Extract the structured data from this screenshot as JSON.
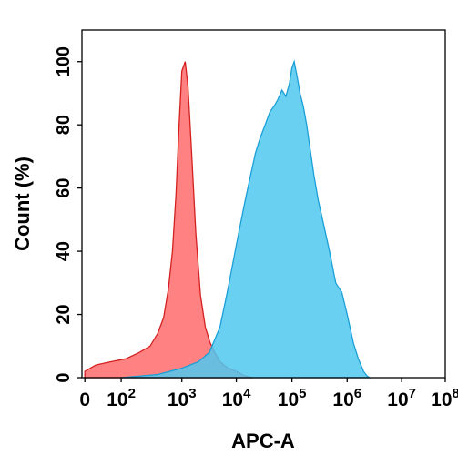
{
  "chart_data": {
    "type": "area",
    "xlabel": "APC-A",
    "ylabel": "Count (%)",
    "xscale": "biexponential",
    "xlim": [
      0,
      100000000
    ],
    "ylim": [
      0,
      110
    ],
    "grid": false,
    "x_ticks": [
      {
        "value": 0,
        "base": "0",
        "exp": ""
      },
      {
        "value": 100,
        "base": "10",
        "exp": "2"
      },
      {
        "value": 1000,
        "base": "10",
        "exp": "3"
      },
      {
        "value": 10000,
        "base": "10",
        "exp": "4"
      },
      {
        "value": 100000,
        "base": "10",
        "exp": "5"
      },
      {
        "value": 1000000,
        "base": "10",
        "exp": "6"
      },
      {
        "value": 10000000,
        "base": "10",
        "exp": "7"
      },
      {
        "value": 100000000,
        "base": "10",
        "exp": "8"
      }
    ],
    "y_ticks": [
      0,
      20,
      40,
      60,
      80,
      100
    ],
    "series": [
      {
        "color": "#ff6b6b",
        "stroke": "#d42020",
        "opacity": 0.85,
        "x": [
          0,
          30,
          70,
          120,
          200,
          300,
          400,
          500,
          600,
          700,
          800,
          900,
          1000,
          1150,
          1300,
          1500,
          1800,
          2200,
          2700,
          3300,
          4000,
          5000,
          7000,
          10000,
          14000,
          20000
        ],
        "y": [
          2,
          4,
          5,
          6,
          8,
          10,
          14,
          19,
          28,
          40,
          58,
          80,
          97,
          100,
          92,
          72,
          46,
          26,
          16,
          11,
          8,
          5,
          3,
          2,
          0.6,
          0
        ]
      },
      {
        "color": "#4fc8f0",
        "stroke": "#1a9fd6",
        "opacity": 0.85,
        "x": [
          100,
          400,
          1000,
          2000,
          3200,
          5000,
          7000,
          10000,
          14000,
          18000,
          22000,
          27000,
          33000,
          40000,
          48000,
          56000,
          66000,
          78000,
          90000,
          100000,
          110000,
          125000,
          140000,
          160000,
          185000,
          215000,
          250000,
          300000,
          380000,
          480000,
          620000,
          800000,
          1000000,
          1300000,
          1600000,
          2000000,
          2300000,
          2600000
        ],
        "y": [
          0,
          1,
          3,
          5,
          8,
          16,
          28,
          42,
          55,
          64,
          71,
          76,
          80,
          84,
          86,
          88,
          91,
          89,
          93,
          98,
          100,
          95,
          90,
          86,
          80,
          72,
          64,
          56,
          48,
          40,
          30,
          27,
          20,
          11,
          6,
          2,
          0.6,
          0
        ]
      }
    ]
  }
}
